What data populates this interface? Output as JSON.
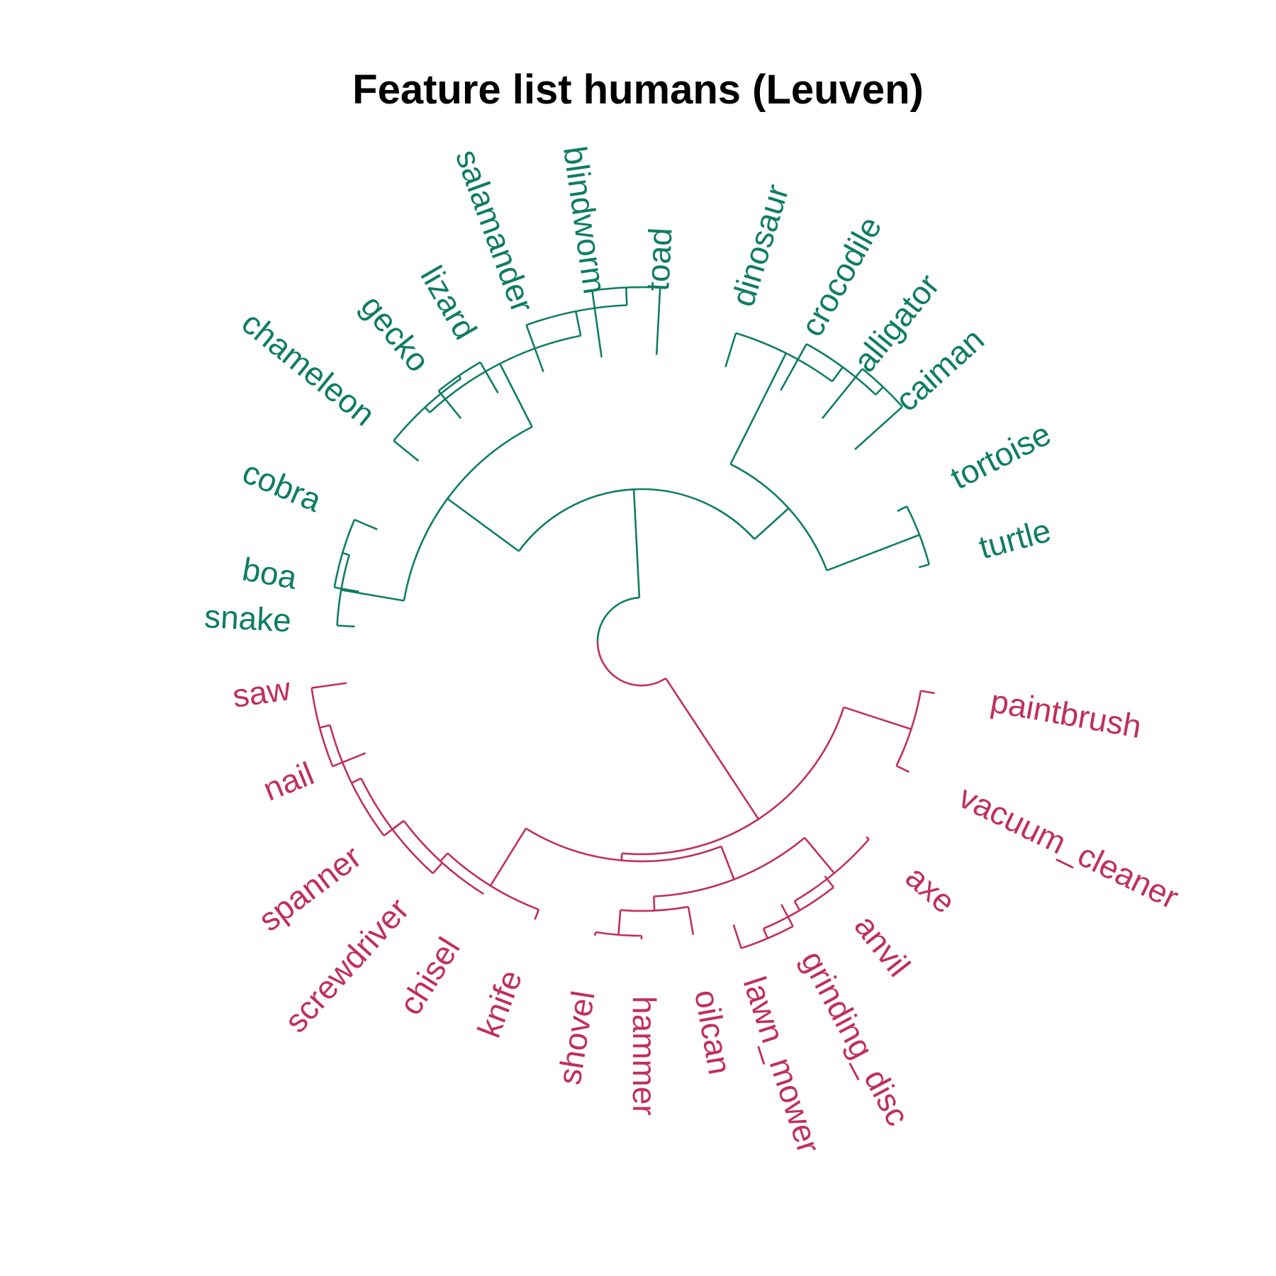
{
  "title": "Feature list humans (Leuven)",
  "colors": {
    "animals": "#0f7d64",
    "tools": "#c0305a"
  },
  "groups": [
    {
      "key": "animals",
      "leaves": [
        "snake",
        "boa",
        "cobra",
        "chameleon",
        "gecko",
        "lizard",
        "salamander",
        "blindworm",
        "toad",
        "dinosaur",
        "crocodile",
        "alligator",
        "caiman",
        "tortoise",
        "turtle"
      ]
    },
    {
      "key": "tools",
      "leaves": [
        "paintbrush",
        "vacuum_cleaner",
        "axe",
        "anvil",
        "grinding_disc",
        "lawn_mower",
        "oilcan",
        "hammer",
        "shovel",
        "knife",
        "chisel",
        "screwdriver",
        "spanner",
        "nail",
        "saw"
      ]
    }
  ]
}
